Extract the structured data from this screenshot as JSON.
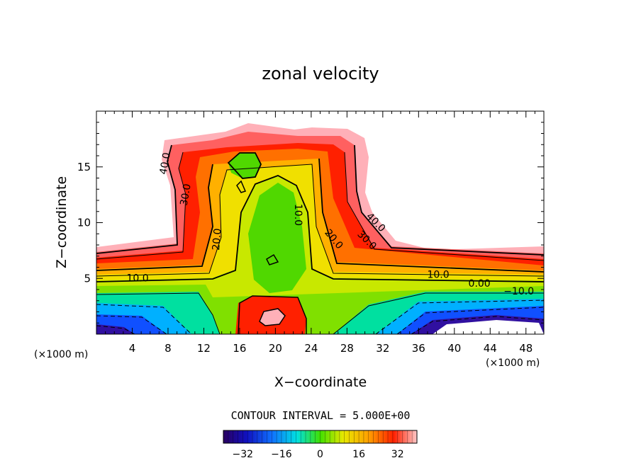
{
  "chart_data": {
    "type": "heatmap",
    "title": "zonal velocity",
    "xlabel": "X−coordinate",
    "ylabel": "Z−coordinate",
    "x_unit_left": "(×1000 m)",
    "x_unit_right": "(×1000 m)",
    "xlim": [
      0,
      50
    ],
    "ylim": [
      0,
      20
    ],
    "x_ticks": [
      "4",
      "8",
      "12",
      "16",
      "20",
      "24",
      "28",
      "32",
      "36",
      "40",
      "44",
      "48"
    ],
    "y_ticks": [
      "5",
      "10",
      "15"
    ],
    "contour_interval_text": "CONTOUR INTERVAL = 5.000E+00",
    "colorbar": {
      "range": [
        -40,
        40
      ],
      "ticks": [
        "−32",
        "−16",
        "0",
        "16",
        "32"
      ],
      "tick_values": [
        -32,
        -16,
        0,
        16,
        32
      ]
    },
    "contour_labels": [
      {
        "text": "40.0",
        "x": 7.7,
        "y": 15.3,
        "angle": -80
      },
      {
        "text": "30.0",
        "x": 10.0,
        "y": 12.5,
        "angle": -80
      },
      {
        "text": "20.0",
        "x": 13.5,
        "y": 8.5,
        "angle": -85
      },
      {
        "text": "10.0",
        "x": 22.5,
        "y": 10.7,
        "angle": 90
      },
      {
        "text": "20.0",
        "x": 26.5,
        "y": 8.5,
        "angle": 50
      },
      {
        "text": "30.0",
        "x": 30.2,
        "y": 8.4,
        "angle": 45
      },
      {
        "text": "40.0",
        "x": 31.2,
        "y": 10.0,
        "angle": 45
      },
      {
        "text": "10.0",
        "x": 4.6,
        "y": 5.0,
        "angle": 0
      },
      {
        "text": "10.0",
        "x": 38.2,
        "y": 5.3,
        "angle": 0
      },
      {
        "text": "0.00",
        "x": 42.8,
        "y": 4.5,
        "angle": 0
      },
      {
        "text": "−10.0",
        "x": 47.2,
        "y": 3.8,
        "angle": 0
      }
    ],
    "grid": false,
    "legend": "none"
  }
}
